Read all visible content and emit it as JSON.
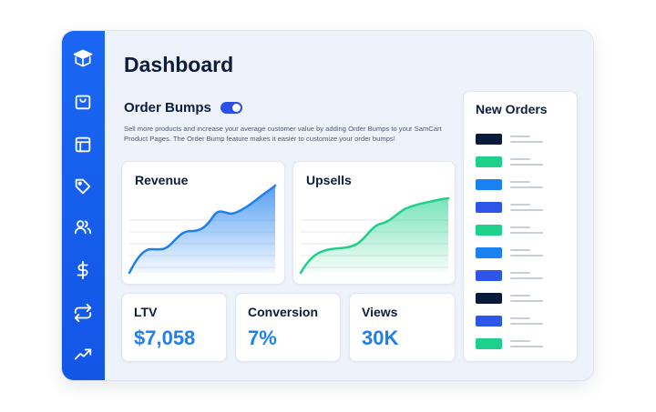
{
  "header": {
    "title": "Dashboard"
  },
  "order_bumps": {
    "title": "Order Bumps",
    "toggle_on": true,
    "description": "Sell more products and increase your average customer value by adding Order Bumps to your SamCart Product Pages. The Order Bump feature makes it easier to customize your order bumps!"
  },
  "sidebar": {
    "items": [
      {
        "icon": "box-logo-icon"
      },
      {
        "icon": "shopping-bag-icon"
      },
      {
        "icon": "layout-icon"
      },
      {
        "icon": "tag-icon"
      },
      {
        "icon": "users-icon"
      },
      {
        "icon": "dollar-icon"
      },
      {
        "icon": "repeat-icon"
      },
      {
        "icon": "trending-up-icon"
      }
    ]
  },
  "cards": {
    "revenue": {
      "title": "Revenue",
      "color": "#1e7ff0"
    },
    "upsells": {
      "title": "Upsells",
      "color": "#1fd08c"
    }
  },
  "stats": [
    {
      "label": "LTV",
      "value": "$7,058"
    },
    {
      "label": "Conversion",
      "value": "7%"
    },
    {
      "label": "Views",
      "value": "30K"
    }
  ],
  "new_orders": {
    "title": "New Orders",
    "swatches": [
      "#0b1a3b",
      "#1fd08c",
      "#1a82f0",
      "#2d55e8",
      "#1fd08c",
      "#1a82f0",
      "#2d55e8",
      "#0b1a3b",
      "#2d55e8",
      "#1fd08c"
    ]
  },
  "colors": {
    "accent": "#1a66f2",
    "value_blue": "#1e7ff0",
    "green": "#1fd08c",
    "navy": "#0d1b3e"
  }
}
